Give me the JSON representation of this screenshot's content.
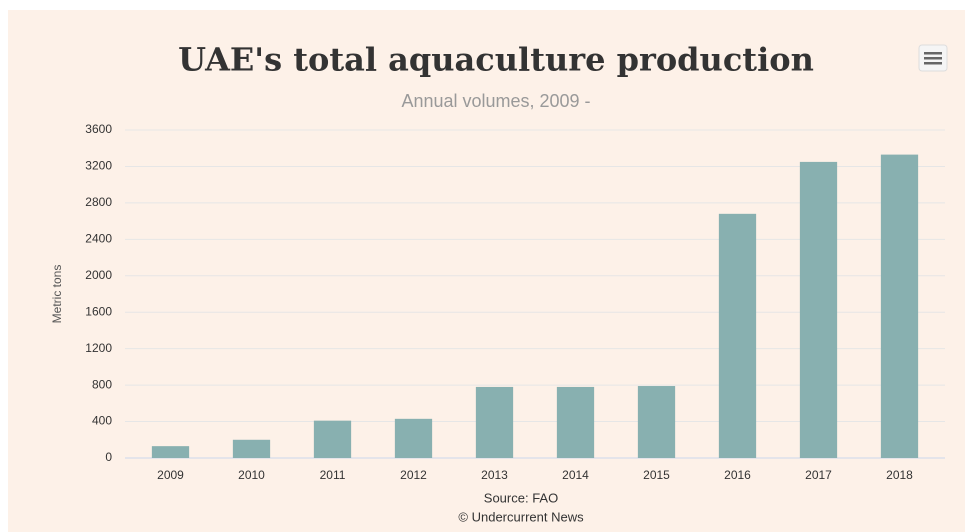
{
  "chart_data": {
    "type": "bar",
    "title": "UAE's total aquaculture production",
    "subtitle": "Annual volumes, 2009 -",
    "y_label": "Metric tons",
    "credits": [
      "Source: FAO",
      "© Undercurrent News"
    ],
    "categories": [
      "2009",
      "2010",
      "2011",
      "2012",
      "2013",
      "2014",
      "2015",
      "2016",
      "2017",
      "2018"
    ],
    "values": [
      130,
      200,
      410,
      430,
      780,
      780,
      790,
      2680,
      3250,
      3330
    ],
    "color": "#88b0b0",
    "ylim": [
      0,
      3600
    ],
    "yticks": [
      0,
      400,
      800,
      1200,
      1600,
      2000,
      2400,
      2800,
      3200,
      3600
    ],
    "grid": true
  }
}
